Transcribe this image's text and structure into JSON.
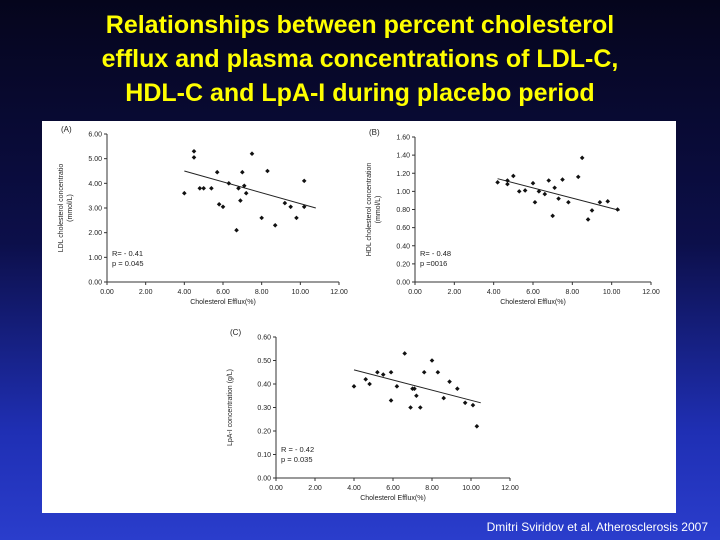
{
  "slide": {
    "title_lines": [
      "Relationships between percent cholesterol",
      "efflux and plasma concentrations of LDL-C,",
      "HDL-C and LpA-I during placebo period"
    ],
    "citation": "Dmitri Sviridov et al. Atherosclerosis 2007"
  },
  "chart_data": [
    {
      "type": "scatter",
      "panel_label": "(A)",
      "xlabel": "Cholesterol Efflux(%)",
      "ylabel": "LDL cholesterol concentratio",
      "ylabel_unit": "(mmol/L)",
      "xlim": [
        0,
        12
      ],
      "ylim": [
        0,
        6
      ],
      "x_ticks": [
        "0.00",
        "2.00",
        "4.00",
        "6.00",
        "8.00",
        "10.00",
        "12.00"
      ],
      "y_ticks": [
        "0.00",
        "1.00",
        "2.00",
        "3.00",
        "4.00",
        "5.00",
        "6.00"
      ],
      "stats": [
        "R= - 0.41",
        "p = 0.045"
      ],
      "trendline": [
        [
          4.0,
          4.5
        ],
        [
          10.8,
          3.0
        ]
      ],
      "points": [
        [
          4.0,
          3.6
        ],
        [
          4.5,
          5.3
        ],
        [
          4.5,
          5.05
        ],
        [
          4.8,
          3.8
        ],
        [
          5.0,
          3.8
        ],
        [
          5.4,
          3.8
        ],
        [
          5.7,
          4.45
        ],
        [
          5.8,
          3.15
        ],
        [
          6.0,
          3.05
        ],
        [
          6.3,
          4.0
        ],
        [
          6.7,
          2.1
        ],
        [
          6.8,
          3.8
        ],
        [
          6.9,
          3.3
        ],
        [
          7.0,
          4.45
        ],
        [
          7.1,
          3.9
        ],
        [
          7.2,
          3.6
        ],
        [
          7.5,
          5.2
        ],
        [
          8.0,
          2.6
        ],
        [
          8.3,
          4.5
        ],
        [
          8.7,
          2.3
        ],
        [
          9.2,
          3.2
        ],
        [
          9.5,
          3.05
        ],
        [
          9.8,
          2.6
        ],
        [
          10.2,
          4.1
        ],
        [
          10.2,
          3.05
        ]
      ]
    },
    {
      "type": "scatter",
      "panel_label": "(B)",
      "xlabel": "Cholesterol Efflux(%)",
      "ylabel": "HDL cholesterol concentration",
      "ylabel_unit": "(mmol/L)",
      "xlim": [
        0,
        12
      ],
      "ylim": [
        0,
        1.6
      ],
      "x_ticks": [
        "0.00",
        "2.00",
        "4.00",
        "6.00",
        "8.00",
        "10.00",
        "12.00"
      ],
      "y_ticks": [
        "0.00",
        "0.20",
        "0.40",
        "0.60",
        "0.80",
        "1.00",
        "1.20",
        "1.40",
        "1.60"
      ],
      "stats": [
        "R= - 0.48",
        "p =0016"
      ],
      "trendline": [
        [
          4.2,
          1.14
        ],
        [
          10.4,
          0.79
        ]
      ],
      "points": [
        [
          4.2,
          1.1
        ],
        [
          4.7,
          1.12
        ],
        [
          4.7,
          1.08
        ],
        [
          5.0,
          1.17
        ],
        [
          5.3,
          1.0
        ],
        [
          5.6,
          1.01
        ],
        [
          6.0,
          1.09
        ],
        [
          6.1,
          0.88
        ],
        [
          6.3,
          1.0
        ],
        [
          6.6,
          0.97
        ],
        [
          6.8,
          1.12
        ],
        [
          7.0,
          0.73
        ],
        [
          7.1,
          1.04
        ],
        [
          7.3,
          0.92
        ],
        [
          7.5,
          1.13
        ],
        [
          7.8,
          0.88
        ],
        [
          8.3,
          1.16
        ],
        [
          8.5,
          1.37
        ],
        [
          8.8,
          0.69
        ],
        [
          9.0,
          0.79
        ],
        [
          9.4,
          0.88
        ],
        [
          9.8,
          0.89
        ],
        [
          10.3,
          0.8
        ]
      ]
    },
    {
      "type": "scatter",
      "panel_label": "(C)",
      "xlabel": "Cholesterol Efflux(%)",
      "ylabel": "LpA-I concentration (g/L)",
      "xlim": [
        0,
        12
      ],
      "ylim": [
        0,
        0.6
      ],
      "x_ticks": [
        "0.00",
        "2.00",
        "4.00",
        "6.00",
        "8.00",
        "10.00",
        "12.00"
      ],
      "y_ticks": [
        "0.00",
        "0.10",
        "0.20",
        "0.30",
        "0.40",
        "0.50",
        "0.60"
      ],
      "stats": [
        "R = - 0.42",
        "p = 0.035"
      ],
      "trendline": [
        [
          4.0,
          0.46
        ],
        [
          10.5,
          0.32
        ]
      ],
      "points": [
        [
          4.0,
          0.39
        ],
        [
          4.6,
          0.42
        ],
        [
          4.8,
          0.4
        ],
        [
          5.2,
          0.45
        ],
        [
          5.5,
          0.44
        ],
        [
          5.9,
          0.45
        ],
        [
          5.9,
          0.33
        ],
        [
          6.2,
          0.39
        ],
        [
          6.6,
          0.53
        ],
        [
          6.9,
          0.3
        ],
        [
          7.0,
          0.38
        ],
        [
          7.1,
          0.38
        ],
        [
          7.2,
          0.35
        ],
        [
          7.4,
          0.3
        ],
        [
          7.6,
          0.45
        ],
        [
          8.0,
          0.5
        ],
        [
          8.3,
          0.45
        ],
        [
          8.6,
          0.34
        ],
        [
          8.9,
          0.41
        ],
        [
          9.3,
          0.38
        ],
        [
          9.7,
          0.32
        ],
        [
          10.1,
          0.31
        ],
        [
          10.3,
          0.22
        ]
      ]
    }
  ]
}
